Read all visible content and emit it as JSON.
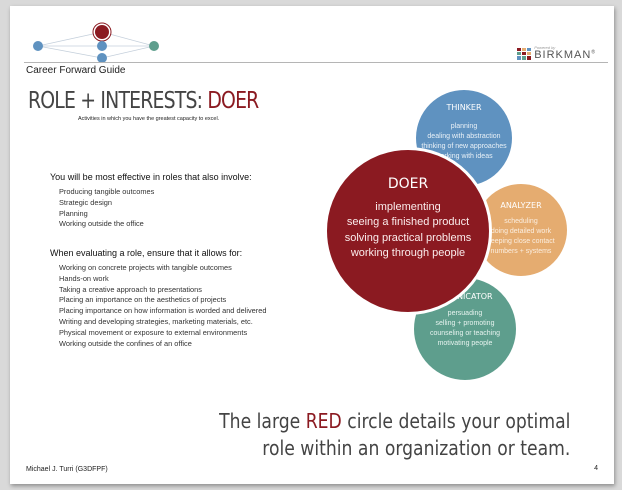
{
  "header": {
    "guide_title": "Career Forward Guide",
    "brand_small": "Powered by",
    "brand_name": "BIRKMAN",
    "brand_mark": "®"
  },
  "heading": {
    "prefix": "ROLE + INTERESTS: ",
    "highlight": "DOER",
    "subtitle": "Activities in which you have the greatest capacity to excel."
  },
  "section_effective": {
    "title": "You will be most effective in roles that also involve:",
    "items": [
      "Producing tangible outcomes",
      "Strategic design",
      "Planning",
      "Working outside the office"
    ]
  },
  "section_evaluate": {
    "title": "When evaluating a role, ensure that it allows for:",
    "items": [
      "Working on concrete projects with tangible outcomes",
      "Hands-on work",
      "Taking a creative approach to presentations",
      "Placing an importance on the aesthetics of projects",
      "Placing importance on how information is worded and delivered",
      "Writing and developing strategies, marketing materials, etc.",
      "Physical movement or exposure to external environments",
      "Working outside the confines of an office"
    ]
  },
  "circles": {
    "thinker": {
      "title": "THINKER",
      "items": [
        "planning",
        "dealing with abstraction",
        "thinking of new approaches",
        "working with ideas"
      ]
    },
    "analyzer": {
      "title": "ANALYZER",
      "items": [
        "scheduling",
        "doing detailed work",
        "keeping close contact",
        "numbers + systems"
      ]
    },
    "communicator": {
      "title": "MMUNICATOR",
      "items": [
        "persuading",
        "selling + promoting",
        "counseling or teaching",
        "motivating people"
      ]
    },
    "doer": {
      "title": "DOER",
      "items": [
        "implementing",
        "seeing a finished product",
        "solving practical problems",
        "working through people"
      ]
    }
  },
  "footer_note": {
    "line1_pre": "The large ",
    "line1_red": "RED",
    "line1_post": " circle details your optimal",
    "line2": "role within an organization or team."
  },
  "footer": {
    "author": "Michael J. Turri (G3DFPF)",
    "page_number": "4"
  },
  "colors": {
    "doer": "#8b1a21",
    "thinker": "#5f92c0",
    "analyzer": "#e5ac70",
    "communicator": "#5e9e8d"
  },
  "icons": {
    "header_graphic": "network-nodes-icon",
    "brand_logo": "birkman-logo-icon"
  }
}
